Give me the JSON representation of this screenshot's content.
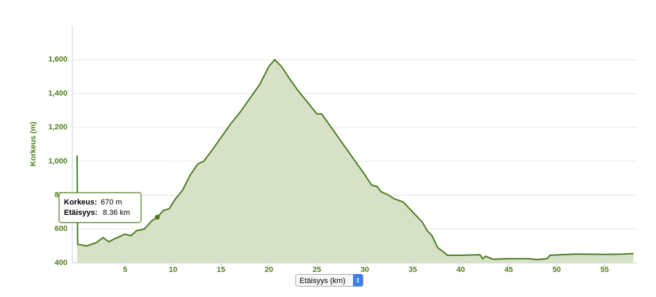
{
  "chart_data": {
    "type": "area",
    "y_label": "Korkeus (m)",
    "x": [
      0,
      0.05,
      1,
      2,
      2.7,
      3.3,
      4,
      5,
      5.6,
      6.2,
      7,
      7.8,
      8.36,
      9,
      9.6,
      10.2,
      11,
      11.8,
      12.6,
      13.2,
      14,
      15,
      16,
      17,
      18,
      19,
      20,
      20.6,
      21.3,
      22,
      23,
      24,
      25,
      25.5,
      26,
      27,
      28,
      29,
      30,
      30.7,
      31.3,
      31.7,
      32.5,
      33,
      34,
      35,
      36,
      36.5,
      37,
      37.6,
      38.2,
      38.6,
      40,
      42,
      42.3,
      42.6,
      43.3,
      45,
      47,
      48,
      49,
      49.3,
      52,
      55,
      57,
      58
    ],
    "series": [
      {
        "name": "Korkeus",
        "color": "#4a7a1e",
        "values": [
          1035,
          510,
          500,
          520,
          550,
          525,
          545,
          570,
          560,
          590,
          600,
          650,
          670,
          710,
          720,
          775,
          830,
          920,
          985,
          1000,
          1060,
          1140,
          1220,
          1290,
          1370,
          1450,
          1560,
          1600,
          1560,
          1500,
          1420,
          1350,
          1280,
          1280,
          1240,
          1160,
          1080,
          1000,
          920,
          860,
          850,
          820,
          800,
          780,
          760,
          700,
          640,
          590,
          560,
          490,
          465,
          445,
          445,
          448,
          425,
          440,
          422,
          425,
          425,
          420,
          425,
          445,
          452,
          450,
          452,
          455
        ]
      }
    ],
    "xlim": [
      0,
      58.4
    ],
    "xticks": [
      5,
      10,
      15,
      20,
      25,
      30,
      35,
      40,
      45,
      50,
      55
    ],
    "ylim": [
      400,
      1800
    ],
    "yticks": [
      400,
      600,
      800,
      {
        "value": 1000,
        "label": "1,000"
      },
      {
        "value": 1200,
        "label": "1,200"
      },
      {
        "value": 1400,
        "label": "1,400"
      },
      {
        "value": 1600,
        "label": "1,600"
      }
    ],
    "grid": true,
    "tooltip": {
      "x": 8.36,
      "y": 670,
      "label_1": "Korkeus:",
      "text_1": "670 m",
      "label_2": "Etäisyys:",
      "text_2": "8.36 km"
    },
    "selector": "Etäisyys (km)"
  }
}
